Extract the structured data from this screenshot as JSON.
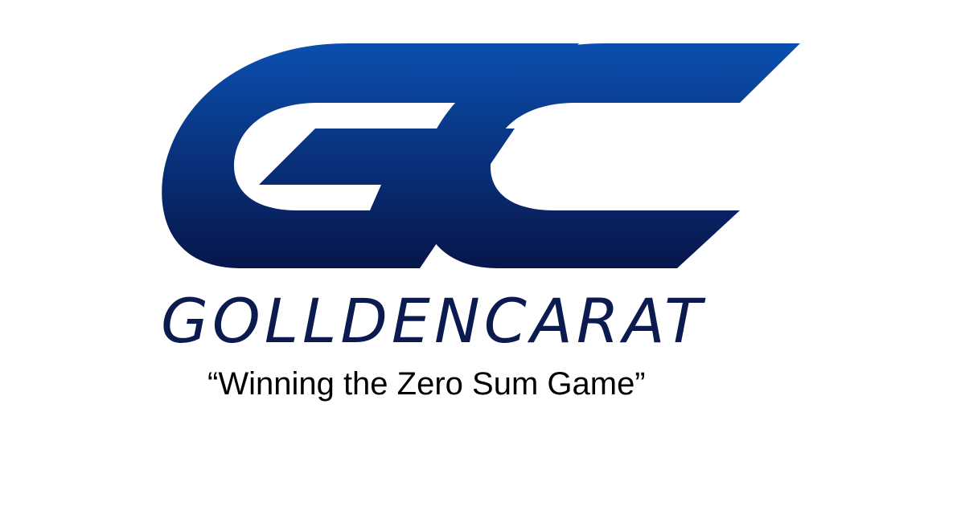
{
  "logo": {
    "monogram": "GC",
    "brand_name": "GOLLDENCARAT",
    "tagline": "“Winning the Zero Sum Game”",
    "colors": {
      "gradient_top": "#0a4fb0",
      "gradient_bottom": "#07154a",
      "wordmark": "#0b1a4f",
      "tagline": "#000000",
      "background": "#ffffff"
    }
  }
}
